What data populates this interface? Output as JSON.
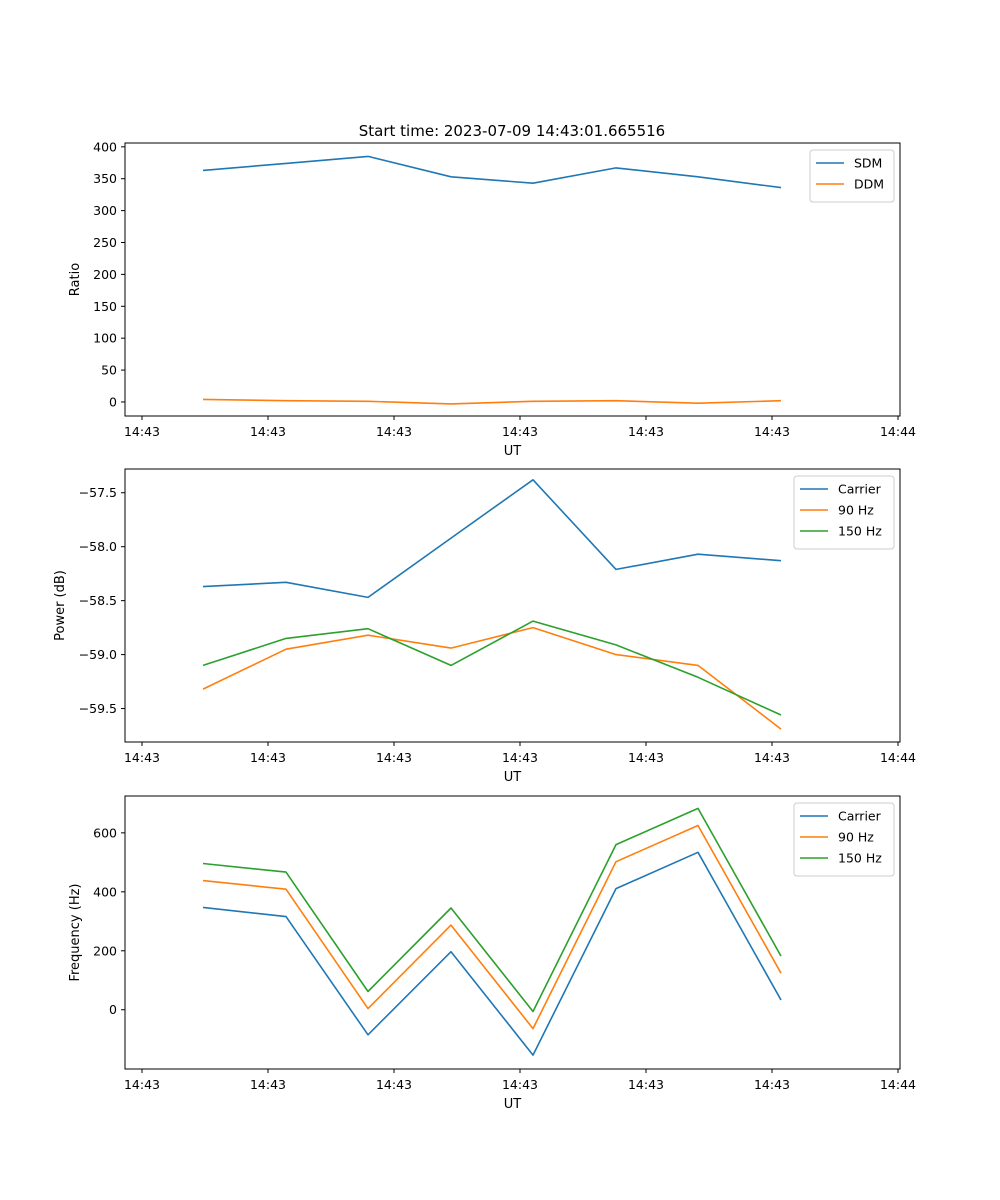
{
  "figure_title": "Start time: 2023-07-09 14:43:01.665516",
  "chart_data": [
    {
      "type": "line",
      "ylabel": "Ratio",
      "xlabel": "UT",
      "ylim": [
        -22,
        406
      ],
      "yticks": [
        0,
        50,
        100,
        150,
        200,
        250,
        300,
        350,
        400
      ],
      "xticks": [
        "14:43",
        "14:43",
        "14:43",
        "14:43",
        "14:43",
        "14:43",
        "14:43"
      ],
      "x_end_tick": "14:44",
      "x": [
        0,
        1,
        2,
        3,
        4,
        5,
        6,
        7
      ],
      "series": [
        {
          "name": "SDM",
          "color": "#1f77b4",
          "values": [
            363,
            374,
            385,
            353,
            343,
            367,
            353,
            336
          ]
        },
        {
          "name": "DDM",
          "color": "#ff7f0e",
          "values": [
            4,
            2,
            1,
            -3,
            1,
            2,
            -2,
            2
          ]
        }
      ],
      "legend": "top-right"
    },
    {
      "type": "line",
      "ylabel": "Power (dB)",
      "xlabel": "UT",
      "ylim": [
        -59.81,
        -57.28
      ],
      "yticks": [
        -59.5,
        -59.0,
        -58.5,
        -58.0,
        -57.5
      ],
      "ytick_labels": [
        "−59.5",
        "−59.0",
        "−58.5",
        "−58.0",
        "−57.5"
      ],
      "xticks": [
        "14:43",
        "14:43",
        "14:43",
        "14:43",
        "14:43",
        "14:43",
        "14:43"
      ],
      "x_end_tick": "14:44",
      "x": [
        0,
        1,
        2,
        3,
        4,
        5,
        6,
        7
      ],
      "series": [
        {
          "name": "Carrier",
          "color": "#1f77b4",
          "values": [
            -58.37,
            -58.33,
            -58.47,
            -57.92,
            -57.38,
            -58.21,
            -58.07,
            -58.13
          ]
        },
        {
          "name": "90 Hz",
          "color": "#ff7f0e",
          "values": [
            -59.32,
            -58.95,
            -58.82,
            -58.94,
            -58.75,
            -59.0,
            -59.1,
            -59.69
          ]
        },
        {
          "name": "150 Hz",
          "color": "#2ca02c",
          "values": [
            -59.1,
            -58.85,
            -58.76,
            -59.1,
            -58.69,
            -58.91,
            -59.21,
            -59.56
          ]
        }
      ],
      "legend": "top-right"
    },
    {
      "type": "line",
      "ylabel": "Frequency (Hz)",
      "xlabel": "UT",
      "ylim": [
        -201,
        725
      ],
      "yticks": [
        0,
        200,
        400,
        600
      ],
      "xticks": [
        "14:43",
        "14:43",
        "14:43",
        "14:43",
        "14:43",
        "14:43",
        "14:43"
      ],
      "x_end_tick": "14:44",
      "x": [
        0,
        1,
        2,
        3,
        4,
        5,
        6,
        7
      ],
      "series": [
        {
          "name": "Carrier",
          "color": "#1f77b4",
          "values": [
            347,
            316,
            -85,
            197,
            -154,
            411,
            534,
            33
          ]
        },
        {
          "name": "90 Hz",
          "color": "#ff7f0e",
          "values": [
            438,
            409,
            4,
            287,
            -64,
            502,
            625,
            124
          ]
        },
        {
          "name": "150 Hz",
          "color": "#2ca02c",
          "values": [
            496,
            467,
            62,
            345,
            -6,
            560,
            683,
            182
          ]
        }
      ],
      "legend": "top-right"
    }
  ]
}
